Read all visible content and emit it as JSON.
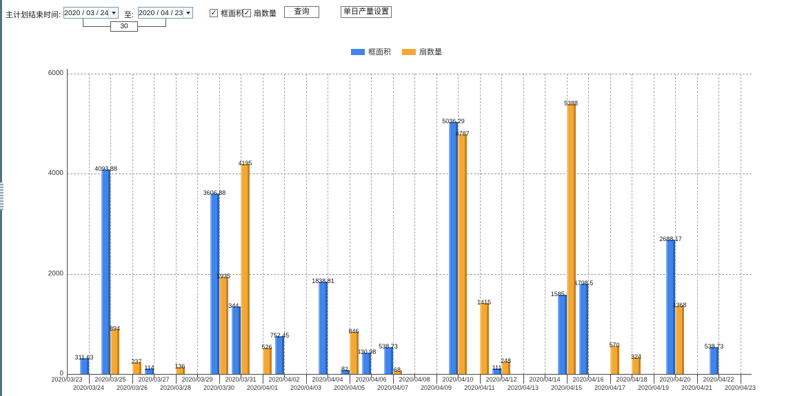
{
  "toolbar": {
    "label_plan_end": "主计划结束时间:",
    "date_from": "2020 / 03 / 24",
    "label_to": "至:",
    "date_to": "2020 / 04 / 23",
    "days_between": "30",
    "checkbox_frame_area": {
      "label": "框面积",
      "checked": true,
      "check_glyph": "✓"
    },
    "checkbox_sash_count": {
      "label": "扇数量",
      "checked": true,
      "check_glyph": "✓"
    },
    "query_button": "查询",
    "daily_output_button": "单日产量设置"
  },
  "colors": {
    "blue": "#3f85ea",
    "orange": "#f2a838"
  },
  "chart_data": {
    "type": "bar",
    "title": "",
    "xlabel": "",
    "ylabel": "",
    "ylim": [
      0,
      6000
    ],
    "yticks": [
      0,
      2000,
      4000,
      6000
    ],
    "grid": true,
    "legend_position": "top",
    "categories": [
      "2020/03/23",
      "2020/03/24",
      "2020/03/25",
      "2020/03/26",
      "2020/03/27",
      "2020/03/28",
      "2020/03/29",
      "2020/03/30",
      "2020/03/31",
      "2020/04/01",
      "2020/04/02",
      "2020/04/03",
      "2020/04/04",
      "2020/04/05",
      "2020/04/06",
      "2020/04/07",
      "2020/04/08",
      "2020/04/09",
      "2020/04/10",
      "2020/04/11",
      "2020/04/12",
      "2020/04/13",
      "2020/04/14",
      "2020/04/15",
      "2020/04/16",
      "2020/04/17",
      "2020/04/18",
      "2020/04/19",
      "2020/04/20",
      "2020/04/21",
      "2020/04/22",
      "2020/04/23"
    ],
    "series": [
      {
        "name": "框面积",
        "color": "#3f85ea",
        "values": [
          null,
          311.63,
          4093.88,
          null,
          114,
          null,
          null,
          3606.88,
          1344.95,
          null,
          752.45,
          null,
          1838.81,
          82,
          430.98,
          538.73,
          null,
          null,
          5036.29,
          null,
          111,
          null,
          null,
          1585.96,
          1798.5,
          null,
          null,
          null,
          2688.17,
          null,
          538.73,
          null
        ]
      },
      {
        "name": "扇数量",
        "color": "#f2a838",
        "values": [
          null,
          null,
          894,
          237,
          null,
          136,
          null,
          1935,
          4195,
          526,
          null,
          null,
          null,
          846,
          null,
          68,
          null,
          null,
          4787,
          1415,
          248,
          null,
          null,
          5388,
          null,
          570,
          324,
          null,
          1368,
          null,
          null,
          null
        ]
      }
    ]
  }
}
